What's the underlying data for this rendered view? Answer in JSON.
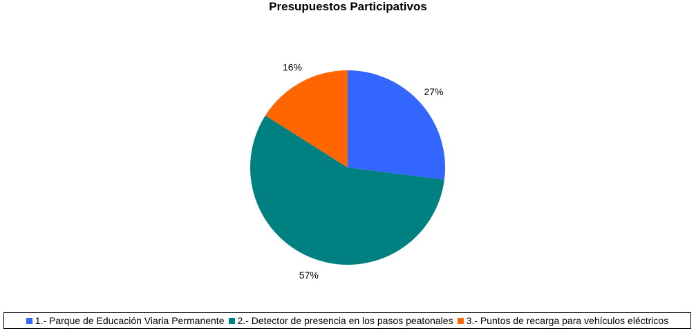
{
  "chart_data": {
    "type": "pie",
    "title": "Presupuestos Participativos",
    "slices": [
      {
        "label": "1.- Parque de Educación Viaria Permanente",
        "value": 27,
        "display": "27%",
        "color": "#3366ff"
      },
      {
        "label": "2.- Detector de presencia en los pasos peatonales",
        "value": 57,
        "display": "57%",
        "color": "#008080"
      },
      {
        "label": "3.- Puntos de recarga para vehículos eléctricos",
        "value": 16,
        "display": "16%",
        "color": "#ff6600"
      }
    ],
    "legend_position": "bottom",
    "start_angle": "top",
    "direction": "clockwise"
  }
}
